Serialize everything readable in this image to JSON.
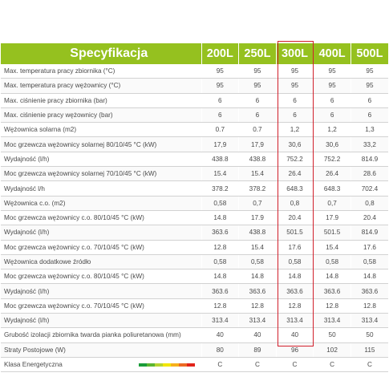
{
  "table": {
    "title": "Specyfikacja",
    "columns": [
      "200L",
      "250L",
      "300L",
      "400L",
      "500L"
    ],
    "rows": [
      {
        "label": "Max. temperatura pracy zbiornika (°C)",
        "values": [
          "95",
          "95",
          "95",
          "95",
          "95"
        ]
      },
      {
        "label": "Max. temperatura pracy wężownicy (°C)",
        "values": [
          "95",
          "95",
          "95",
          "95",
          "95"
        ]
      },
      {
        "label": "Max. ciśnienie pracy zbiornika (bar)",
        "values": [
          "6",
          "6",
          "6",
          "6",
          "6"
        ]
      },
      {
        "label": "Max. ciśnienie pracy wężownicy (bar)",
        "values": [
          "6",
          "6",
          "6",
          "6",
          "6"
        ]
      },
      {
        "label": "Wężownica solarna (m2)",
        "values": [
          "0.7",
          "0.7",
          "1,2",
          "1,2",
          "1,3"
        ]
      },
      {
        "label": "Moc grzewcza wężownicy solarnej 80/10/45 °C (kW)",
        "values": [
          "17,9",
          "17,9",
          "30,6",
          "30,6",
          "33,2"
        ]
      },
      {
        "label": "Wydajność (l/h)",
        "values": [
          "438.8",
          "438.8",
          "752.2",
          "752.2",
          "814.9"
        ]
      },
      {
        "label": "Moc grzewcza wężownicy solarnej 70/10/45 °C (kW)",
        "values": [
          "15.4",
          "15.4",
          "26.4",
          "26.4",
          "28.6"
        ]
      },
      {
        "label": "Wydajność l/h",
        "values": [
          "378.2",
          "378.2",
          "648.3",
          "648.3",
          "702.4"
        ]
      },
      {
        "label": "Wężownica c.o. (m2)",
        "values": [
          "0,58",
          "0,7",
          "0,8",
          "0,7",
          "0,8"
        ]
      },
      {
        "label": "Moc grzewcza wężownicy c.o. 80/10/45 °C (kW)",
        "values": [
          "14.8",
          "17.9",
          "20.4",
          "17.9",
          "20.4"
        ]
      },
      {
        "label": "Wydajność (l/h)",
        "values": [
          "363.6",
          "438.8",
          "501.5",
          "501.5",
          "814.9"
        ]
      },
      {
        "label": "Moc grzewcza wężownicy c.o. 70/10/45 °C (kW)",
        "values": [
          "12.8",
          "15.4",
          "17.6",
          "15.4",
          "17.6"
        ]
      },
      {
        "label": "Wężownica dodatkowe źródło",
        "values": [
          "0,58",
          "0,58",
          "0,58",
          "0,58",
          "0,58"
        ]
      },
      {
        "label": "Moc grzewcza wężownicy c.o. 80/10/45 °C (kW)",
        "values": [
          "14.8",
          "14.8",
          "14.8",
          "14.8",
          "14.8"
        ]
      },
      {
        "label": "Wydajność (l/h)",
        "values": [
          "363.6",
          "363.6",
          "363.6",
          "363.6",
          "363.6"
        ]
      },
      {
        "label": "Moc grzewcza wężownicy c.o. 70/10/45 °C (kW)",
        "values": [
          "12.8",
          "12.8",
          "12.8",
          "12.8",
          "12.8"
        ]
      },
      {
        "label": "Wydajność (l/h)",
        "values": [
          "313.4",
          "313.4",
          "313.4",
          "313.4",
          "313.4"
        ]
      },
      {
        "label": "Grubość izolacji zbiornika twarda pianka poliuretanowa (mm)",
        "values": [
          "40",
          "40",
          "40",
          "50",
          "50"
        ]
      },
      {
        "label": "Straty Postojowe (W)",
        "values": [
          "80",
          "89",
          "96",
          "102",
          "115"
        ]
      },
      {
        "label": "Klasa Energetyczna",
        "values": [
          "C",
          "C",
          "C",
          "C",
          "C"
        ],
        "energy_scale": true
      }
    ],
    "highlighted_column": "300L"
  },
  "colors": {
    "header_green": "#95c11f",
    "highlight_red": "#d11f2b",
    "energy_scale": [
      "#1a9c3a",
      "#5cb531",
      "#b6d332",
      "#f2e600",
      "#f6b01c",
      "#ec6a24",
      "#e2231a"
    ]
  }
}
